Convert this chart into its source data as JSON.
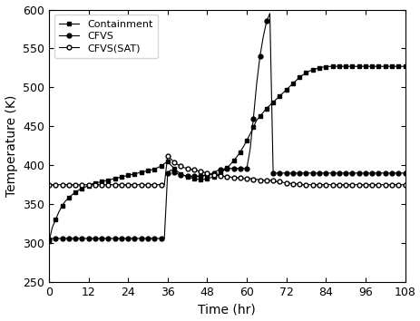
{
  "title": "",
  "xlabel": "Time (hr)",
  "ylabel": "Temperature (K)",
  "xlim": [
    0,
    108
  ],
  "ylim": [
    250,
    600
  ],
  "xticks": [
    0,
    12,
    24,
    36,
    48,
    60,
    72,
    84,
    96,
    108
  ],
  "yticks": [
    250,
    300,
    350,
    400,
    450,
    500,
    550,
    600
  ],
  "containment_time": [
    0,
    1,
    2,
    3,
    4,
    5,
    6,
    7,
    8,
    9,
    10,
    11,
    12,
    13,
    14,
    15,
    16,
    17,
    18,
    19,
    20,
    21,
    22,
    23,
    24,
    25,
    26,
    27,
    28,
    29,
    30,
    31,
    32,
    33,
    34,
    35,
    36,
    37,
    38,
    39,
    40,
    41,
    42,
    43,
    44,
    45,
    46,
    47,
    48,
    49,
    50,
    51,
    52,
    53,
    54,
    55,
    56,
    57,
    58,
    59,
    60,
    61,
    62,
    63,
    64,
    65,
    66,
    67,
    68,
    69,
    70,
    71,
    72,
    73,
    74,
    75,
    76,
    77,
    78,
    79,
    80,
    81,
    82,
    83,
    84,
    85,
    86,
    87,
    88,
    89,
    90,
    91,
    92,
    93,
    94,
    95,
    96,
    97,
    98,
    99,
    100,
    101,
    102,
    103,
    104,
    105,
    106,
    107,
    108
  ],
  "containment_temp": [
    302,
    320,
    330,
    340,
    348,
    354,
    358,
    362,
    365,
    368,
    370,
    372,
    374,
    376,
    377,
    378,
    379,
    380,
    381,
    382,
    383,
    384,
    385,
    386,
    387,
    388,
    389,
    390,
    391,
    392,
    393,
    394,
    395,
    397,
    399,
    402,
    405,
    400,
    396,
    392,
    389,
    387,
    385,
    384,
    383,
    382,
    382,
    382,
    383,
    384,
    385,
    387,
    390,
    393,
    397,
    401,
    406,
    411,
    417,
    424,
    432,
    440,
    449,
    458,
    463,
    468,
    473,
    477,
    481,
    485,
    489,
    493,
    497,
    501,
    505,
    509,
    513,
    516,
    519,
    521,
    523,
    524,
    525,
    526,
    526,
    527,
    527,
    527,
    527,
    527,
    527,
    527,
    527,
    527,
    527,
    527,
    527,
    527,
    527,
    527,
    527,
    527,
    527,
    527,
    527,
    527,
    527,
    527,
    527
  ],
  "cfvs_time": [
    0,
    1,
    2,
    3,
    4,
    5,
    6,
    7,
    8,
    9,
    10,
    11,
    12,
    13,
    14,
    15,
    16,
    17,
    18,
    19,
    20,
    21,
    22,
    23,
    24,
    25,
    26,
    27,
    28,
    29,
    30,
    31,
    32,
    33,
    34,
    35,
    36,
    37,
    38,
    39,
    40,
    41,
    42,
    43,
    44,
    45,
    46,
    47,
    48,
    49,
    50,
    51,
    52,
    53,
    54,
    55,
    56,
    57,
    58,
    59,
    60,
    61,
    62,
    63,
    64,
    65,
    66,
    67,
    68,
    69,
    70,
    71,
    72,
    73,
    74,
    75,
    76,
    77,
    78,
    79,
    80,
    81,
    82,
    83,
    84,
    85,
    86,
    87,
    88,
    89,
    90,
    91,
    92,
    93,
    94,
    95,
    96,
    97,
    98,
    99,
    100,
    101,
    102,
    103,
    104,
    105,
    106,
    107,
    108
  ],
  "cfvs_temp": [
    305,
    306,
    306,
    306,
    306,
    306,
    306,
    306,
    306,
    306,
    306,
    306,
    306,
    306,
    306,
    306,
    306,
    306,
    306,
    306,
    306,
    306,
    306,
    306,
    306,
    306,
    306,
    306,
    306,
    306,
    306,
    306,
    306,
    306,
    306,
    306,
    390,
    394,
    391,
    389,
    388,
    387,
    386,
    386,
    386,
    386,
    386,
    387,
    387,
    388,
    390,
    393,
    394,
    395,
    396,
    396,
    396,
    396,
    396,
    396,
    396,
    420,
    460,
    505,
    540,
    565,
    585,
    595,
    390,
    390,
    390,
    390,
    390,
    390,
    390,
    390,
    390,
    390,
    390,
    390,
    390,
    390,
    390,
    390,
    390,
    390,
    390,
    390,
    390,
    390,
    390,
    390,
    390,
    390,
    390,
    390,
    390,
    390,
    390,
    390,
    390,
    390,
    390,
    390,
    390,
    390,
    390,
    390,
    390
  ],
  "cfvs_sat_time": [
    0,
    1,
    2,
    3,
    4,
    5,
    6,
    7,
    8,
    9,
    10,
    11,
    12,
    13,
    14,
    15,
    16,
    17,
    18,
    19,
    20,
    21,
    22,
    23,
    24,
    25,
    26,
    27,
    28,
    29,
    30,
    31,
    32,
    33,
    34,
    35,
    36,
    37,
    38,
    39,
    40,
    41,
    42,
    43,
    44,
    45,
    46,
    47,
    48,
    49,
    50,
    51,
    52,
    53,
    54,
    55,
    56,
    57,
    58,
    59,
    60,
    61,
    62,
    63,
    64,
    65,
    66,
    67,
    68,
    69,
    70,
    71,
    72,
    73,
    74,
    75,
    76,
    77,
    78,
    79,
    80,
    81,
    82,
    83,
    84,
    85,
    86,
    87,
    88,
    89,
    90,
    91,
    92,
    93,
    94,
    95,
    96,
    97,
    98,
    99,
    100,
    101,
    102,
    103,
    104,
    105,
    106,
    107,
    108
  ],
  "cfvs_sat_temp": [
    375,
    375,
    375,
    375,
    375,
    375,
    375,
    375,
    375,
    375,
    375,
    375,
    375,
    375,
    375,
    375,
    375,
    375,
    375,
    375,
    375,
    375,
    375,
    375,
    375,
    375,
    375,
    375,
    375,
    375,
    375,
    375,
    375,
    375,
    375,
    375,
    412,
    408,
    404,
    401,
    399,
    397,
    396,
    395,
    394,
    393,
    392,
    391,
    390,
    389,
    388,
    387,
    386,
    386,
    385,
    385,
    384,
    384,
    384,
    383,
    383,
    383,
    382,
    382,
    381,
    381,
    381,
    381,
    380,
    379,
    379,
    378,
    377,
    377,
    376,
    376,
    376,
    375,
    375,
    375,
    375,
    375,
    375,
    375,
    375,
    375,
    375,
    375,
    375,
    375,
    375,
    375,
    375,
    375,
    375,
    375,
    375,
    375,
    375,
    375,
    375,
    375,
    375,
    375,
    375,
    375,
    375,
    375,
    375
  ],
  "containment_color": "black",
  "cfvs_color": "black",
  "cfvs_sat_color": "black",
  "legend_loc": "upper left",
  "figsize": [
    4.64,
    3.54
  ],
  "dpi": 100
}
